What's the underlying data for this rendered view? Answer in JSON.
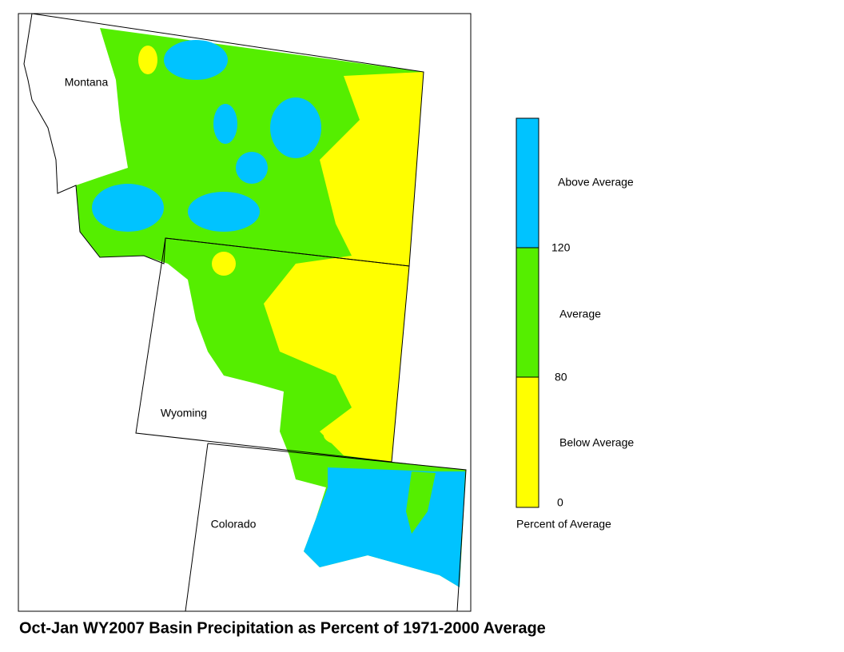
{
  "title": "Oct-Jan WY2007 Basin Precipitation as Percent of 1971-2000 Average",
  "states": [
    "Montana",
    "Wyoming",
    "Colorado"
  ],
  "legend": {
    "categories": [
      "Above Average",
      "Average",
      "Below Average"
    ],
    "ticks": [
      120,
      80,
      0
    ],
    "caption": "Percent of Average"
  }
}
